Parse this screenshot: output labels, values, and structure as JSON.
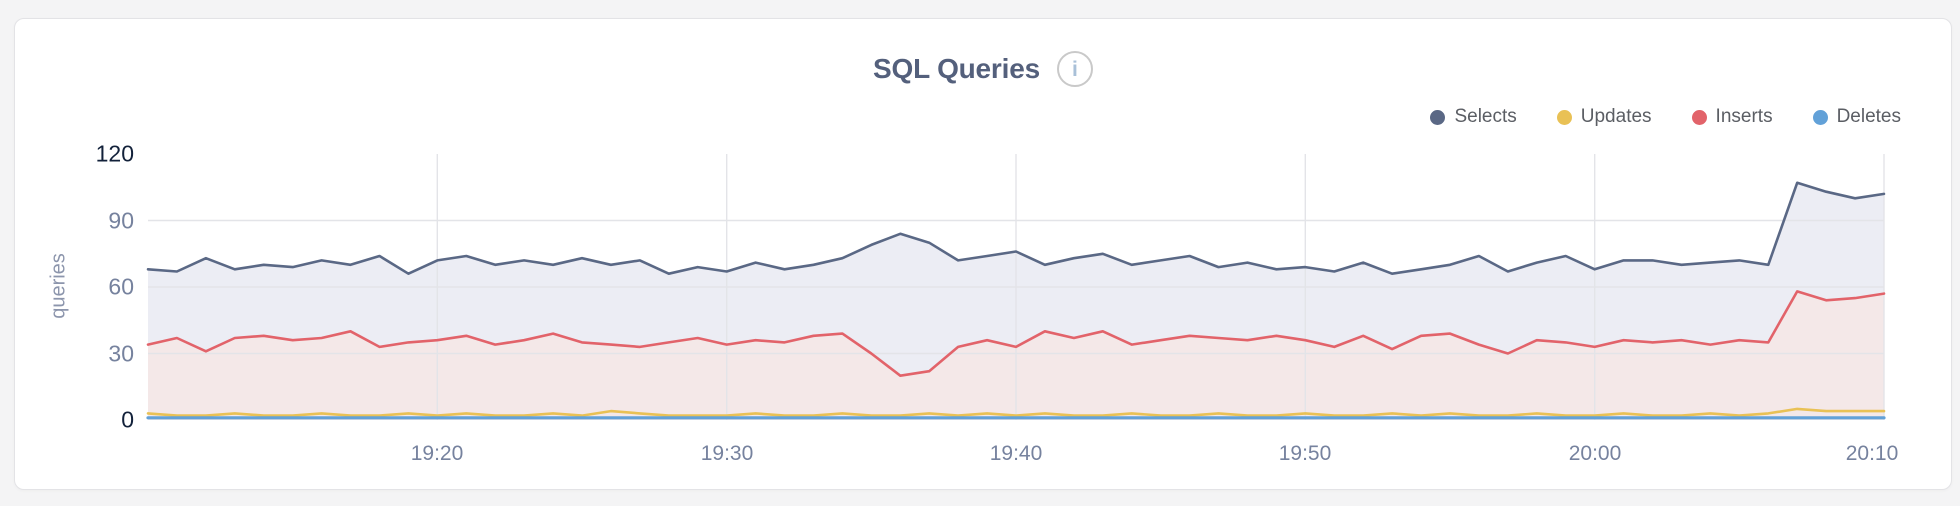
{
  "panel": {
    "title": "SQL Queries",
    "info_glyph": "i"
  },
  "chart_data": {
    "type": "area",
    "title": "SQL Queries",
    "xlabel": "",
    "ylabel": "queries",
    "ylim": [
      0,
      120
    ],
    "y_ticks": [
      0,
      30,
      60,
      90,
      120
    ],
    "x_tick_labels": [
      "19:20",
      "19:30",
      "19:40",
      "19:50",
      "20:00",
      "20:10"
    ],
    "grid": true,
    "legend_position": "top-right",
    "grid_color": "#e3e4e8",
    "x": [
      "19:10",
      "19:11",
      "19:12",
      "19:13",
      "19:14",
      "19:15",
      "19:16",
      "19:17",
      "19:18",
      "19:19",
      "19:20",
      "19:21",
      "19:22",
      "19:23",
      "19:24",
      "19:25",
      "19:26",
      "19:27",
      "19:28",
      "19:29",
      "19:30",
      "19:31",
      "19:32",
      "19:33",
      "19:34",
      "19:35",
      "19:36",
      "19:37",
      "19:38",
      "19:39",
      "19:40",
      "19:41",
      "19:42",
      "19:43",
      "19:44",
      "19:45",
      "19:46",
      "19:47",
      "19:48",
      "19:49",
      "19:50",
      "19:51",
      "19:52",
      "19:53",
      "19:54",
      "19:55",
      "19:56",
      "19:57",
      "19:58",
      "19:59",
      "20:00",
      "20:01",
      "20:02",
      "20:03",
      "20:04",
      "20:05",
      "20:06",
      "20:07",
      "20:08",
      "20:09",
      "20:10"
    ],
    "series": [
      {
        "name": "Selects",
        "color": "#5a6885",
        "fill": "#ecedf4",
        "line_width": 2.6,
        "values": [
          68,
          67,
          73,
          68,
          70,
          69,
          72,
          70,
          74,
          66,
          72,
          74,
          70,
          72,
          70,
          73,
          70,
          72,
          66,
          69,
          67,
          71,
          68,
          70,
          73,
          79,
          84,
          80,
          72,
          74,
          76,
          70,
          73,
          75,
          70,
          72,
          74,
          69,
          71,
          68,
          69,
          67,
          71,
          66,
          68,
          70,
          74,
          67,
          71,
          74,
          68,
          72,
          72,
          70,
          71,
          72,
          70,
          107,
          103,
          100,
          102
        ]
      },
      {
        "name": "Updates",
        "color": "#e9c155",
        "fill": "none",
        "line_width": 2.6,
        "values": [
          3,
          2,
          2,
          3,
          2,
          2,
          3,
          2,
          2,
          3,
          2,
          3,
          2,
          2,
          3,
          2,
          4,
          3,
          2,
          2,
          2,
          3,
          2,
          2,
          3,
          2,
          2,
          3,
          2,
          3,
          2,
          3,
          2,
          2,
          3,
          2,
          2,
          3,
          2,
          2,
          3,
          2,
          2,
          3,
          2,
          3,
          2,
          2,
          3,
          2,
          2,
          3,
          2,
          2,
          3,
          2,
          3,
          5,
          4,
          4,
          4
        ]
      },
      {
        "name": "Inserts",
        "color": "#e2636a",
        "fill": "#f4e8e8",
        "line_width": 2.6,
        "values": [
          34,
          37,
          31,
          37,
          38,
          36,
          37,
          40,
          33,
          35,
          36,
          38,
          34,
          36,
          39,
          35,
          34,
          33,
          35,
          37,
          34,
          36,
          35,
          38,
          39,
          30,
          20,
          22,
          33,
          36,
          33,
          40,
          37,
          40,
          34,
          36,
          38,
          37,
          36,
          38,
          36,
          33,
          38,
          32,
          38,
          39,
          34,
          30,
          36,
          35,
          33,
          36,
          35,
          36,
          34,
          36,
          35,
          58,
          54,
          55,
          57
        ]
      },
      {
        "name": "Deletes",
        "color": "#62a1d8",
        "fill": "none",
        "line_width": 3.2,
        "values": [
          1,
          1,
          1,
          1,
          1,
          1,
          1,
          1,
          1,
          1,
          1,
          1,
          1,
          1,
          1,
          1,
          1,
          1,
          1,
          1,
          1,
          1,
          1,
          1,
          1,
          1,
          1,
          1,
          1,
          1,
          1,
          1,
          1,
          1,
          1,
          1,
          1,
          1,
          1,
          1,
          1,
          1,
          1,
          1,
          1,
          1,
          1,
          1,
          1,
          1,
          1,
          1,
          1,
          1,
          1,
          1,
          1,
          1,
          1,
          1,
          1
        ]
      }
    ]
  }
}
